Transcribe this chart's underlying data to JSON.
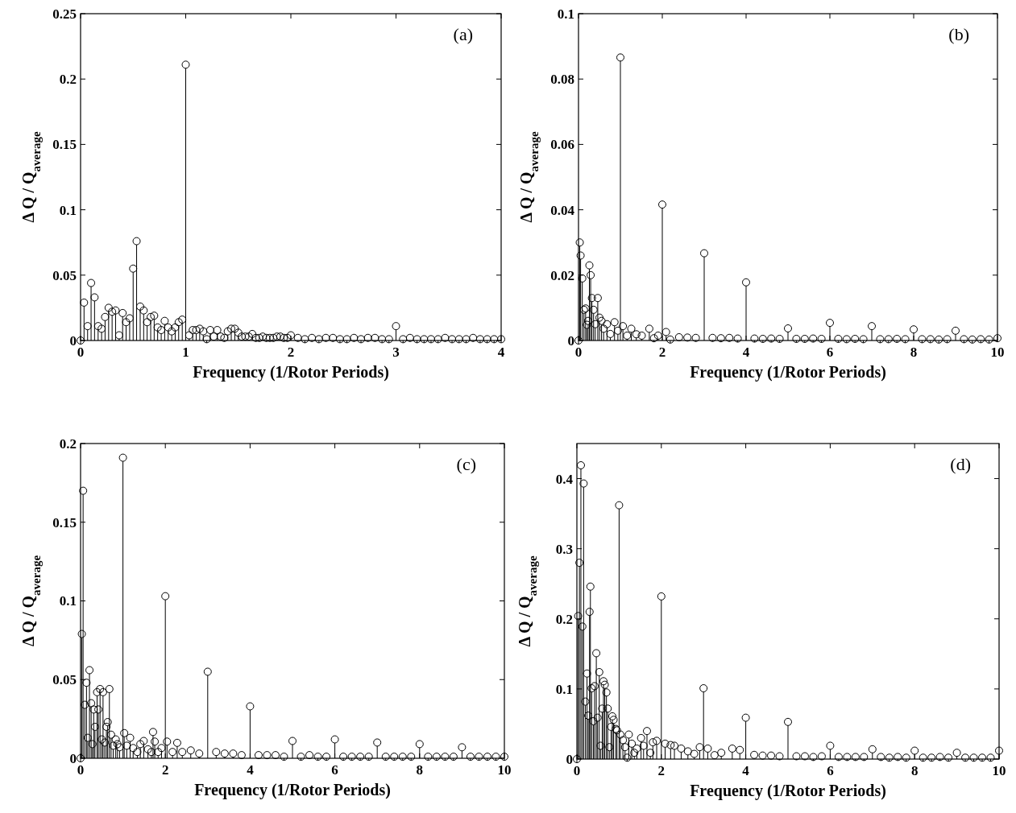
{
  "chart_data": [
    {
      "type": "lollipop",
      "marker": "circle",
      "xlabel": "Frequency (1/Rotor Periods)",
      "ylabel": "Δ Q / Q$_{average}$",
      "annotations": [
        "(a)"
      ],
      "xlim": [
        0,
        4
      ],
      "ylim": [
        0,
        0.25
      ],
      "xticks": [
        0,
        1,
        2,
        3,
        4
      ],
      "yticks": [
        0,
        0.05,
        0.1,
        0.15,
        0.2,
        0.25
      ],
      "x": [
        0,
        0.033,
        0.067,
        0.1,
        0.133,
        0.167,
        0.2,
        0.233,
        0.267,
        0.3,
        0.333,
        0.367,
        0.4,
        0.433,
        0.467,
        0.5,
        0.533,
        0.567,
        0.6,
        0.633,
        0.667,
        0.7,
        0.733,
        0.767,
        0.8,
        0.833,
        0.867,
        0.9,
        0.933,
        0.967,
        1,
        1.033,
        1.067,
        1.1,
        1.133,
        1.167,
        1.2,
        1.233,
        1.267,
        1.3,
        1.333,
        1.367,
        1.4,
        1.433,
        1.467,
        1.5,
        1.533,
        1.567,
        1.6,
        1.633,
        1.667,
        1.7,
        1.733,
        1.767,
        1.8,
        1.833,
        1.867,
        1.9,
        1.933,
        1.967,
        2,
        2.067,
        2.133,
        2.2,
        2.267,
        2.333,
        2.4,
        2.467,
        2.533,
        2.6,
        2.667,
        2.733,
        2.8,
        2.867,
        2.933,
        3,
        3.067,
        3.133,
        3.2,
        3.267,
        3.333,
        3.4,
        3.467,
        3.533,
        3.6,
        3.667,
        3.733,
        3.8,
        3.867,
        3.933,
        4
      ],
      "series": [
        {
          "color": "#000000",
          "values": [
            0,
            0.029,
            0.011,
            0.044,
            0.033,
            0.011,
            0.009,
            0.018,
            0.025,
            0.022,
            0.023,
            0.004,
            0.021,
            0.014,
            0.017,
            0.055,
            0.076,
            0.026,
            0.023,
            0.014,
            0.018,
            0.019,
            0.01,
            0.008,
            0.015,
            0.01,
            0.007,
            0.01,
            0.014,
            0.016,
            0.211,
            0.004,
            0.008,
            0.008,
            0.009,
            0.007,
            0.001,
            0.008,
            0.003,
            0.008,
            0.003,
            0.002,
            0.007,
            0.009,
            0.009,
            0.006,
            0.003,
            0.003,
            0.003,
            0.005,
            0.002,
            0.002,
            0.003,
            0.002,
            0.002,
            0.002,
            0.003,
            0.003,
            0.002,
            0.002,
            0.004,
            0.002,
            0.001,
            0.002,
            0.001,
            0.002,
            0.002,
            0.001,
            0.001,
            0.002,
            0.001,
            0.002,
            0.002,
            0.001,
            0.001,
            0.011,
            0.001,
            0.002,
            0.001,
            0.001,
            0.001,
            0.001,
            0.002,
            0.001,
            0.001,
            0.001,
            0.002,
            0.001,
            0.001,
            0.001,
            0.001
          ]
        }
      ]
    },
    {
      "type": "lollipop",
      "marker": "circle",
      "xlabel": "Frequency (1/Rotor Periods)",
      "ylabel": "Δ Q / Q$_{average}$",
      "annotations": [
        "(b)"
      ],
      "xlim": [
        0,
        10
      ],
      "ylim": [
        0,
        0.1
      ],
      "xticks": [
        0,
        2,
        4,
        6,
        8,
        10
      ],
      "yticks": [
        0,
        0.02,
        0.04,
        0.06,
        0.08,
        0.1
      ],
      "x": [
        0,
        0.03,
        0.05,
        0.09,
        0.13,
        0.17,
        0.2,
        0.23,
        0.26,
        0.29,
        0.32,
        0.36,
        0.4,
        0.46,
        0.5,
        0.55,
        0.6,
        0.68,
        0.76,
        0.86,
        0.94,
        1,
        1.06,
        1.16,
        1.26,
        1.38,
        1.51,
        1.69,
        1.8,
        1.9,
        2,
        2.09,
        2.19,
        2.4,
        2.6,
        2.8,
        3,
        3.2,
        3.4,
        3.6,
        3.8,
        4,
        4.2,
        4.4,
        4.6,
        4.8,
        5,
        5.2,
        5.4,
        5.6,
        5.8,
        6,
        6.2,
        6.4,
        6.6,
        6.8,
        7,
        7.2,
        7.4,
        7.6,
        7.8,
        8,
        8.2,
        8.4,
        8.6,
        8.8,
        9,
        9.2,
        9.4,
        9.6,
        9.8,
        10
      ],
      "series": [
        {
          "color": "#000000",
          "values": [
            0,
            0.03,
            0.026,
            0.019,
            0.0094,
            0.0098,
            0.0048,
            0.006,
            0.023,
            0.02,
            0.013,
            0.0094,
            0.005,
            0.013,
            0.007,
            0.006,
            0.0036,
            0.005,
            0.002,
            0.0056,
            0.003,
            0.0866,
            0.0044,
            0.0015,
            0.0036,
            0.0019,
            0.0015,
            0.0036,
            0.0007,
            0.0015,
            0.0416,
            0.0026,
            0.0003,
            0.001,
            0.0009,
            0.0008,
            0.0267,
            0.0008,
            0.0007,
            0.0008,
            0.0006,
            0.0178,
            0.0006,
            0.0005,
            0.0006,
            0.0005,
            0.0037,
            0.0005,
            0.0005,
            0.0006,
            0.0005,
            0.0054,
            0.0005,
            0.0004,
            0.0005,
            0.0004,
            0.0044,
            0.0004,
            0.0004,
            0.0005,
            0.0004,
            0.0034,
            0.0004,
            0.0004,
            0.0003,
            0.0004,
            0.003,
            0.0004,
            0.0003,
            0.0004,
            0.0003,
            0.0007
          ]
        }
      ]
    },
    {
      "type": "lollipop",
      "marker": "circle",
      "xlabel": "Frequency (1/Rotor Periods)",
      "ylabel": "Δ Q / Q$_{average}$",
      "annotations": [
        "(c)"
      ],
      "xlim": [
        0,
        10
      ],
      "ylim": [
        0,
        0.2
      ],
      "xticks": [
        0,
        2,
        4,
        6,
        8,
        10
      ],
      "yticks": [
        0,
        0.05,
        0.1,
        0.15,
        0.2
      ],
      "x": [
        0,
        0.03,
        0.06,
        0.1,
        0.14,
        0.17,
        0.21,
        0.25,
        0.28,
        0.31,
        0.34,
        0.39,
        0.42,
        0.46,
        0.5,
        0.53,
        0.57,
        0.61,
        0.64,
        0.68,
        0.72,
        0.77,
        0.83,
        0.87,
        0.92,
        1,
        1.03,
        1.09,
        1.17,
        1.24,
        1.34,
        1.41,
        1.49,
        1.59,
        1.67,
        1.71,
        1.75,
        1.83,
        1.91,
        2,
        2.04,
        2.17,
        2.28,
        2.4,
        2.6,
        2.8,
        3,
        3.2,
        3.4,
        3.6,
        3.8,
        4,
        4.2,
        4.4,
        4.6,
        4.8,
        5,
        5.2,
        5.4,
        5.6,
        5.8,
        6,
        6.2,
        6.4,
        6.6,
        6.8,
        7,
        7.2,
        7.4,
        7.6,
        7.8,
        8,
        8.2,
        8.4,
        8.6,
        8.8,
        9,
        9.2,
        9.4,
        9.6,
        9.8,
        10
      ],
      "series": [
        {
          "color": "#000000",
          "values": [
            0,
            0.079,
            0.17,
            0.034,
            0.048,
            0.013,
            0.056,
            0.035,
            0.009,
            0.031,
            0.02,
            0.042,
            0.031,
            0.044,
            0.012,
            0.042,
            0.01,
            0.02,
            0.023,
            0.044,
            0.015,
            0.008,
            0.012,
            0.009,
            0.007,
            0.191,
            0.016,
            0.008,
            0.013,
            0.0065,
            0.004,
            0.009,
            0.011,
            0.0057,
            0.004,
            0.0167,
            0.0106,
            0.004,
            0.0065,
            0.103,
            0.0106,
            0.004,
            0.0098,
            0.004,
            0.005,
            0.003,
            0.055,
            0.004,
            0.003,
            0.003,
            0.002,
            0.033,
            0.002,
            0.002,
            0.002,
            0.001,
            0.011,
            0.001,
            0.002,
            0.001,
            0.001,
            0.012,
            0.001,
            0.001,
            0.001,
            0.001,
            0.01,
            0.001,
            0.001,
            0.001,
            0.001,
            0.009,
            0.001,
            0.001,
            0.001,
            0.001,
            0.007,
            0.001,
            0.001,
            0.001,
            0.001,
            0.001
          ]
        }
      ]
    },
    {
      "type": "lollipop",
      "marker": "circle",
      "xlabel": "Frequency (1/Rotor Periods)",
      "ylabel": "Δ Q / Q$_{average}$",
      "annotations": [
        "(d)"
      ],
      "xlim": [
        0,
        10
      ],
      "ylim": [
        0,
        0.45
      ],
      "xticks": [
        0,
        2,
        4,
        6,
        8,
        10
      ],
      "yticks": [
        0,
        0.1,
        0.2,
        0.3,
        0.4
      ],
      "x": [
        0,
        0.03,
        0.06,
        0.095,
        0.13,
        0.16,
        0.2,
        0.24,
        0.27,
        0.3,
        0.32,
        0.35,
        0.39,
        0.42,
        0.46,
        0.49,
        0.53,
        0.56,
        0.6,
        0.63,
        0.66,
        0.7,
        0.73,
        0.77,
        0.81,
        0.84,
        0.87,
        0.92,
        0.95,
        1,
        1.03,
        1.09,
        1.14,
        1.19,
        1.23,
        1.3,
        1.36,
        1.42,
        1.52,
        1.58,
        1.66,
        1.74,
        1.8,
        1.89,
        2,
        2.09,
        2.22,
        2.31,
        2.47,
        2.63,
        2.78,
        2.91,
        3,
        3.1,
        3.26,
        3.42,
        3.68,
        3.86,
        4,
        4.2,
        4.4,
        4.6,
        4.8,
        5,
        5.2,
        5.4,
        5.6,
        5.8,
        6,
        6.2,
        6.4,
        6.6,
        6.8,
        7,
        7.2,
        7.4,
        7.6,
        7.8,
        8,
        8.2,
        8.4,
        8.6,
        8.8,
        9,
        9.2,
        9.4,
        9.6,
        9.8,
        10
      ],
      "series": [
        {
          "color": "#000000",
          "values": [
            0,
            0.204,
            0.28,
            0.419,
            0.189,
            0.393,
            0.082,
            0.122,
            0.062,
            0.21,
            0.246,
            0.101,
            0.054,
            0.104,
            0.151,
            0.059,
            0.124,
            0.019,
            0.072,
            0.111,
            0.106,
            0.095,
            0.072,
            0.017,
            0.046,
            0.061,
            0.056,
            0.043,
            0.041,
            0.362,
            0.035,
            0.027,
            0.017,
            0.002,
            0.035,
            0.022,
            0.009,
            0.015,
            0.03,
            0.019,
            0.04,
            0.009,
            0.024,
            0.026,
            0.232,
            0.022,
            0.02,
            0.019,
            0.015,
            0.011,
            0.0074,
            0.017,
            0.101,
            0.015,
            0.0056,
            0.009,
            0.015,
            0.013,
            0.059,
            0.006,
            0.005,
            0.005,
            0.004,
            0.053,
            0.004,
            0.004,
            0.003,
            0.004,
            0.019,
            0.003,
            0.003,
            0.003,
            0.003,
            0.014,
            0.003,
            0.002,
            0.003,
            0.002,
            0.012,
            0.002,
            0.002,
            0.003,
            0.002,
            0.009,
            0.002,
            0.002,
            0.002,
            0.002,
            0.012
          ]
        }
      ]
    }
  ]
}
